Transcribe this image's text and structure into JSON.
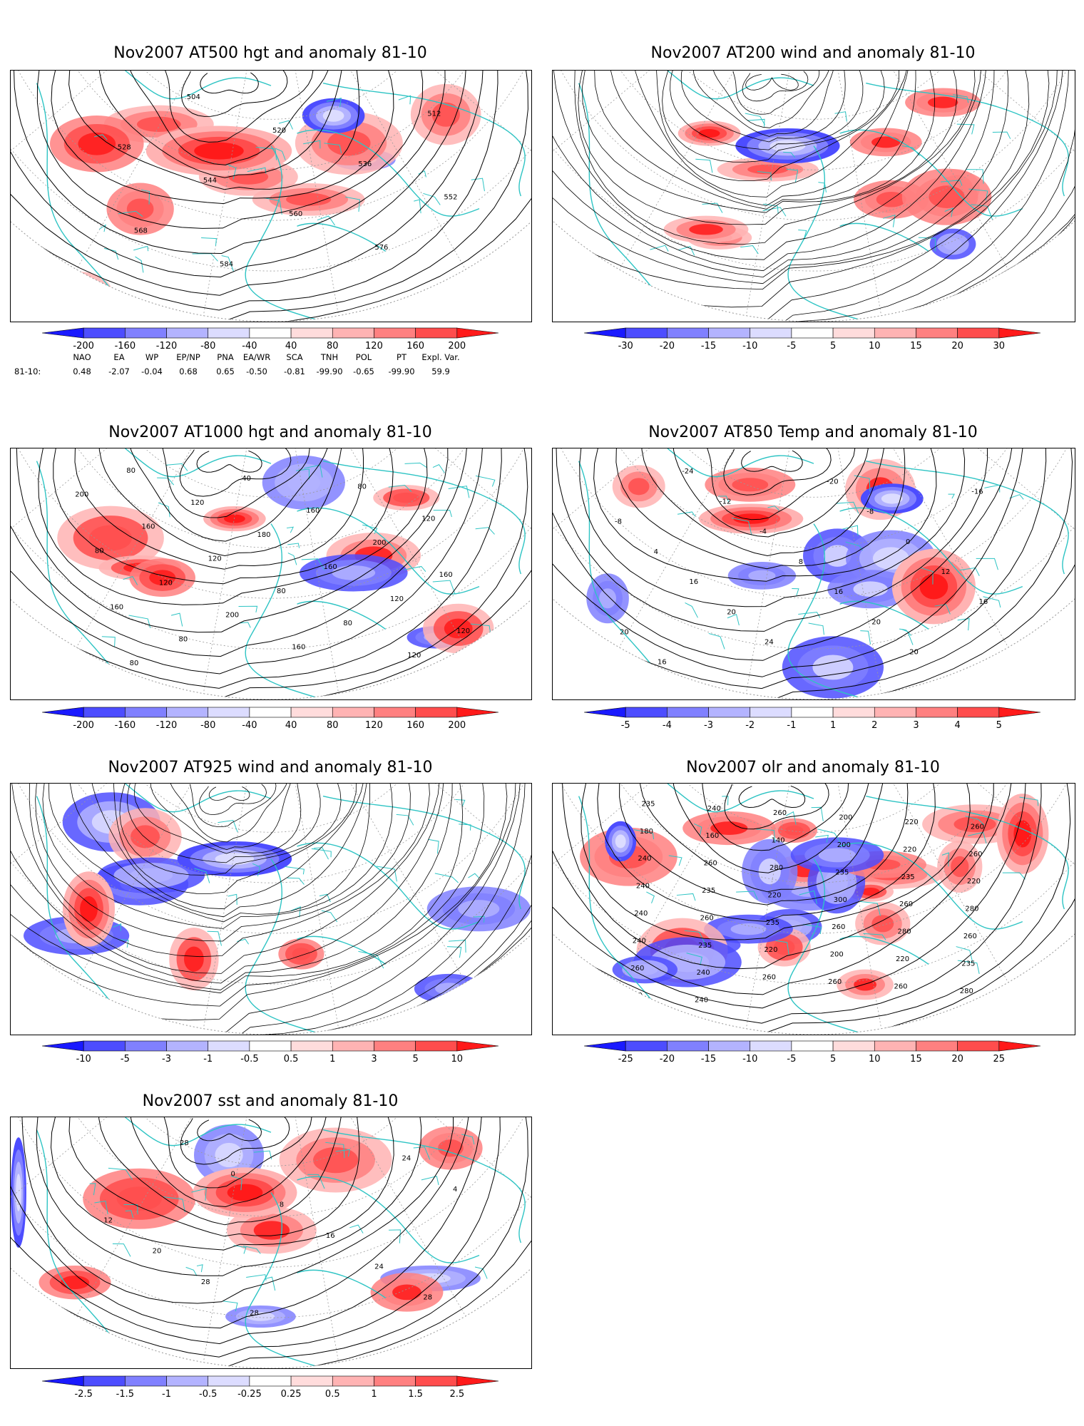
{
  "panels": [
    {
      "id": "p500",
      "title": "Nov2007 AT500 hgt and anomaly 81-10",
      "colorbar_labels": [
        "-200",
        "-160",
        "-120",
        "-80",
        "-40",
        "40",
        "80",
        "120",
        "160",
        "200"
      ],
      "contour_labels": [
        "504",
        "512",
        "520",
        "528",
        "536",
        "544",
        "552",
        "560",
        "568",
        "576",
        "584",
        "584"
      ],
      "anomaly_blobs": [
        {
          "sign": "+",
          "strength": 3
        },
        {
          "sign": "-",
          "strength": 1
        }
      ]
    },
    {
      "id": "p200",
      "title": "Nov2007 AT200 wind and anomaly 81-10",
      "colorbar_labels": [
        "-30",
        "-20",
        "-15",
        "-10",
        "-5",
        "5",
        "10",
        "15",
        "20",
        "30"
      ],
      "contour_labels": []
    },
    {
      "id": "p1000",
      "title": "Nov2007 AT1000 hgt and anomaly 81-10",
      "colorbar_labels": [
        "-200",
        "-160",
        "-120",
        "-80",
        "-40",
        "40",
        "80",
        "120",
        "160",
        "200"
      ],
      "contour_labels": [
        "80",
        "40",
        "80",
        "200",
        "120",
        "160",
        "120",
        "160",
        "180",
        "200",
        "80",
        "120",
        "160",
        "160",
        "120",
        "80",
        "120",
        "160",
        "200",
        "80",
        "120",
        "80",
        "160",
        "120",
        "80"
      ]
    },
    {
      "id": "p850",
      "title": "Nov2007 AT850 Temp and anomaly 81-10",
      "colorbar_labels": [
        "-5",
        "-4",
        "-3",
        "-2",
        "-1",
        "1",
        "2",
        "3",
        "4",
        "5"
      ],
      "contour_labels": [
        "-24",
        "-20",
        "-16",
        "-12",
        "-8",
        "-8",
        "-4",
        "0",
        "4",
        "8",
        "12",
        "16",
        "16",
        "16",
        "20",
        "20",
        "20",
        "24",
        "20",
        "16"
      ]
    },
    {
      "id": "p925",
      "title": "Nov2007 AT925 wind and anomaly 81-10",
      "colorbar_labels": [
        "-10",
        "-5",
        "-3",
        "-1",
        "-0.5",
        "0.5",
        "1",
        "3",
        "5",
        "10"
      ],
      "contour_labels": []
    },
    {
      "id": "polr",
      "title": "Nov2007 olr and anomaly 81-10",
      "colorbar_labels": [
        "-25",
        "-20",
        "-15",
        "-10",
        "-5",
        "5",
        "10",
        "15",
        "20",
        "25"
      ],
      "contour_labels": [
        "235",
        "240",
        "260",
        "200",
        "220",
        "260",
        "180",
        "160",
        "140",
        "200",
        "220",
        "260",
        "240",
        "260",
        "280",
        "235",
        "235",
        "220",
        "240",
        "235",
        "220",
        "300",
        "260",
        "280",
        "240",
        "260",
        "235",
        "260",
        "280",
        "260",
        "240",
        "235",
        "220",
        "200",
        "220",
        "235",
        "260",
        "240",
        "260",
        "260",
        "260",
        "280",
        "300",
        "240"
      ]
    },
    {
      "id": "psst",
      "title": "Nov2007 sst and anomaly 81-10",
      "colorbar_labels": [
        "-2.5",
        "-1.5",
        "-1",
        "-0.5",
        "-0.25",
        "0.25",
        "0.5",
        "1",
        "1.5",
        "2.5"
      ],
      "contour_labels": [
        "28",
        "24",
        "0",
        "4",
        "8",
        "12",
        "16",
        "20",
        "24",
        "28",
        "28",
        "28",
        "24"
      ]
    }
  ],
  "teleconnection": {
    "headers": [
      "NAO",
      "EA",
      "WP",
      "EP/NP",
      "PNA",
      "EA/WR",
      "SCA",
      "TNH",
      "POL",
      "PT",
      "Expl. Var."
    ],
    "row_label": "81-10:",
    "values": [
      "0.48",
      "-2.07",
      "-0.04",
      "0.68",
      "0.65",
      "-0.50",
      "-0.81",
      "-99.90",
      "-0.65",
      "-99.90",
      "59.9"
    ]
  },
  "colors": {
    "coast": "#2ec4c4",
    "contour": "#000000",
    "grid": "#9a9a9a",
    "neg": [
      "#1a1aff",
      "#4d4dff",
      "#8080ff",
      "#b3b3ff",
      "#dcdcff"
    ],
    "pos": [
      "#ffdcdc",
      "#ffb3b3",
      "#ff8080",
      "#ff4d4d",
      "#ff1a1a"
    ]
  }
}
